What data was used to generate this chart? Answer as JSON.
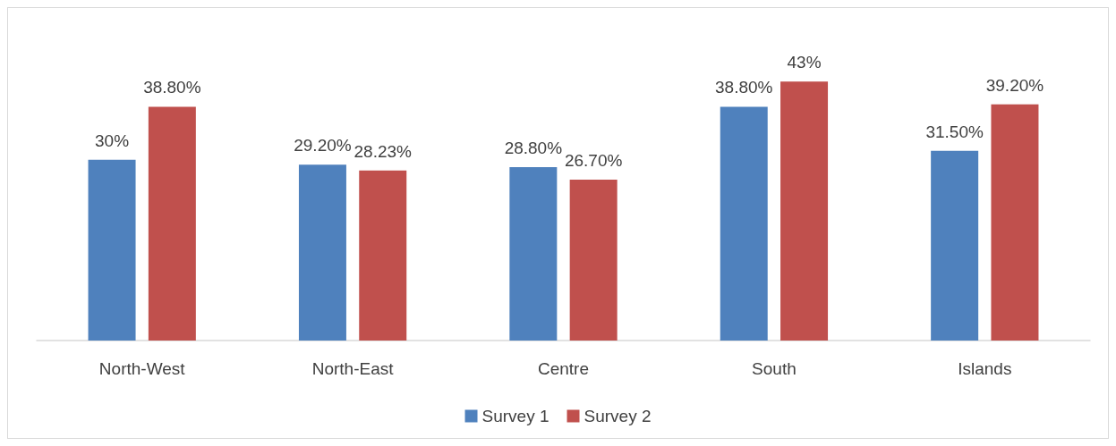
{
  "chart_data": {
    "type": "bar",
    "categories": [
      "North-West",
      "North-East",
      "Centre",
      "South",
      "Islands"
    ],
    "series": [
      {
        "name": "Survey 1",
        "color": "#4f81bd",
        "values": [
          30,
          29.2,
          28.8,
          38.8,
          31.5
        ],
        "value_labels": [
          "30%",
          "29.20%",
          "28.80%",
          "38.80%",
          "31.50%"
        ]
      },
      {
        "name": "Survey 2",
        "color": "#c0504d",
        "values": [
          38.8,
          28.23,
          26.7,
          43,
          39.2
        ],
        "value_labels": [
          "38.80%",
          "28.23%",
          "26.70%",
          "43%",
          "39.20%"
        ]
      }
    ],
    "legend": "bottom",
    "grid": false
  }
}
